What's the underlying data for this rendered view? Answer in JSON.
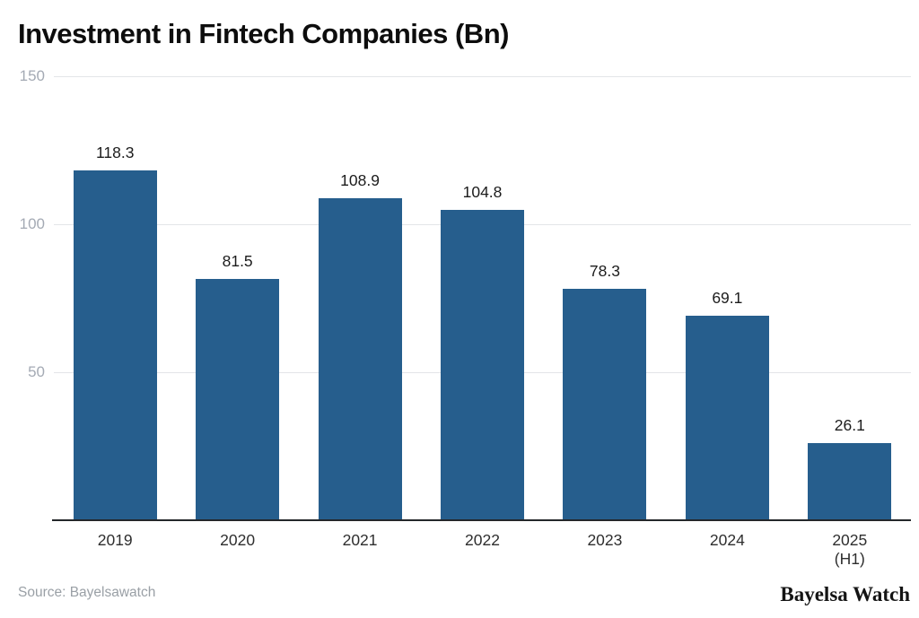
{
  "chart_data": {
    "type": "bar",
    "title": "Investment in Fintech Companies (Bn)",
    "categories": [
      "2019",
      "2020",
      "2021",
      "2022",
      "2023",
      "2024",
      "2025 (H1)"
    ],
    "values": [
      118.3,
      81.5,
      108.9,
      104.8,
      78.3,
      69.1,
      26.1
    ],
    "xlabel": "",
    "ylabel": "",
    "ylim": [
      0,
      150
    ],
    "yticks": [
      50,
      100,
      150
    ],
    "grid": true,
    "legend": false,
    "value_labels": true,
    "bar_color": "#265e8d"
  },
  "footer": {
    "source": "Source: Bayelsawatch",
    "brand": "Bayelsa Watch"
  }
}
